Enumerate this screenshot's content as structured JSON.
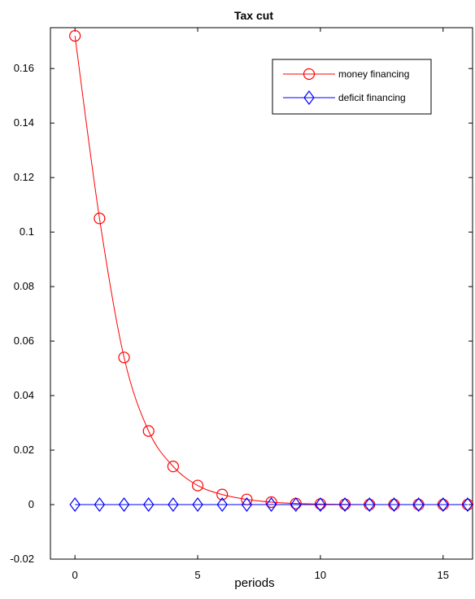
{
  "chart_data": {
    "type": "line",
    "title": "Tax cut",
    "xlabel": "periods",
    "ylabel": "",
    "xlim": [
      -1,
      16.2
    ],
    "ylim": [
      -0.02,
      0.175
    ],
    "x_ticks": [
      0,
      5,
      10,
      15
    ],
    "x_tick_labels": [
      "0",
      "5",
      "10",
      "15"
    ],
    "y_ticks": [
      -0.02,
      0,
      0.02,
      0.04,
      0.06,
      0.08,
      0.1,
      0.12,
      0.14,
      0.16
    ],
    "y_tick_labels": [
      "-0.02",
      "0",
      "0.02",
      "0.04",
      "0.06",
      "0.08",
      "0.1",
      "0.12",
      "0.14",
      "0.16"
    ],
    "grid": false,
    "legend_position": "top-right",
    "x": [
      0,
      1,
      2,
      3,
      4,
      5,
      6,
      7,
      8,
      9,
      10,
      11,
      12,
      13,
      14,
      15,
      16
    ],
    "series": [
      {
        "name": "money financing",
        "color": "#ff0000",
        "marker": "circle",
        "values": [
          0.172,
          0.105,
          0.054,
          0.027,
          0.014,
          0.007,
          0.0037,
          0.0019,
          0.0009,
          0.0004,
          0.0002,
          0.0001,
          0.0,
          0.0,
          0.0,
          0.0,
          0.0
        ]
      },
      {
        "name": "deficit financing",
        "color": "#0000ff",
        "marker": "diamond",
        "values": [
          0,
          0,
          0,
          0,
          0,
          0,
          0,
          0,
          0,
          0,
          0,
          0,
          0,
          0,
          0,
          0,
          0
        ]
      }
    ]
  }
}
